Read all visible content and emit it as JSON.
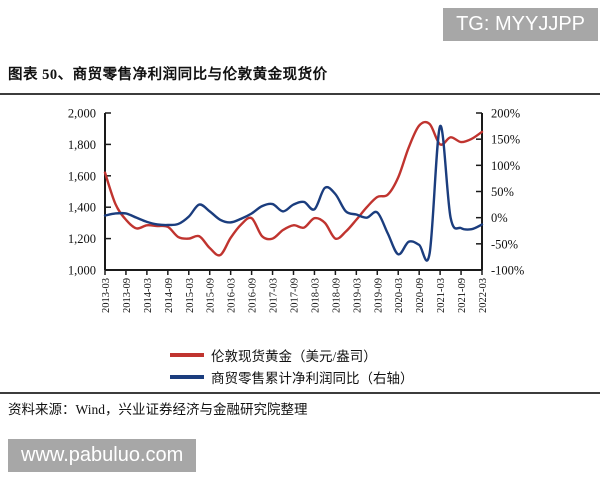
{
  "header": {
    "tg_badge": "TG: MYYJJPP"
  },
  "title": "图表 50、商贸零售净利润同比与伦敦黄金现货价",
  "footer": {
    "source": "资料来源：Wind，兴业证券经济与金融研究院整理",
    "site_badge": "www.pabuluo.com"
  },
  "colors": {
    "gold_line": "#c0342f",
    "profit_line": "#1b3d7e",
    "axis": "#1a1a1a",
    "badge_bg": "#a7a7a7"
  },
  "chart_data": {
    "type": "line",
    "title": "商贸零售净利润同比与伦敦黄金现货价",
    "grid": false,
    "legend_position": "bottom",
    "x": [
      "2013-03",
      "2013-06",
      "2013-09",
      "2013-12",
      "2014-03",
      "2014-06",
      "2014-09",
      "2014-12",
      "2015-03",
      "2015-06",
      "2015-09",
      "2015-12",
      "2016-03",
      "2016-06",
      "2016-09",
      "2016-12",
      "2017-03",
      "2017-06",
      "2017-09",
      "2017-12",
      "2018-03",
      "2018-06",
      "2018-09",
      "2018-12",
      "2019-03",
      "2019-06",
      "2019-09",
      "2019-12",
      "2020-03",
      "2020-06",
      "2020-09",
      "2020-12",
      "2021-03",
      "2021-06",
      "2021-09",
      "2021-12",
      "2022-03"
    ],
    "x_tick_labels": [
      "2013-03",
      "2013-09",
      "2014-03",
      "2014-09",
      "2015-03",
      "2015-09",
      "2016-03",
      "2016-09",
      "2017-03",
      "2017-09",
      "2018-03",
      "2018-09",
      "2019-03",
      "2019-09",
      "2020-03",
      "2020-09",
      "2021-03",
      "2021-09",
      "2022-03"
    ],
    "left_axis": {
      "min": 1000,
      "max": 2000,
      "ticks": [
        "2,000",
        "1,800",
        "1,600",
        "1,400",
        "1,200",
        "1,000"
      ]
    },
    "right_axis": {
      "min": -100,
      "max": 200,
      "ticks": [
        "200%",
        "150%",
        "100%",
        "50%",
        "0%",
        "-50%",
        "-100%"
      ]
    },
    "series": [
      {
        "name": "伦敦现货黄金（美元/盎司）",
        "axis": "left",
        "color": "#c0342f",
        "values": [
          1620,
          1420,
          1320,
          1265,
          1285,
          1280,
          1275,
          1210,
          1200,
          1215,
          1140,
          1095,
          1205,
          1290,
          1330,
          1215,
          1200,
          1255,
          1285,
          1270,
          1330,
          1300,
          1200,
          1245,
          1320,
          1400,
          1465,
          1480,
          1590,
          1780,
          1920,
          1930,
          1800,
          1845,
          1815,
          1835,
          1880
        ]
      },
      {
        "name": "商贸零售累计净利润同比（右轴）",
        "axis": "right",
        "color": "#1b3d7e",
        "values": [
          4,
          8,
          8,
          0,
          -8,
          -13,
          -14,
          -12,
          2,
          25,
          12,
          -4,
          -9,
          -2,
          8,
          22,
          26,
          12,
          25,
          30,
          16,
          57,
          45,
          12,
          6,
          0,
          10,
          -30,
          -70,
          -46,
          -52,
          -68,
          175,
          0,
          -20,
          -22,
          -13
        ]
      }
    ]
  }
}
